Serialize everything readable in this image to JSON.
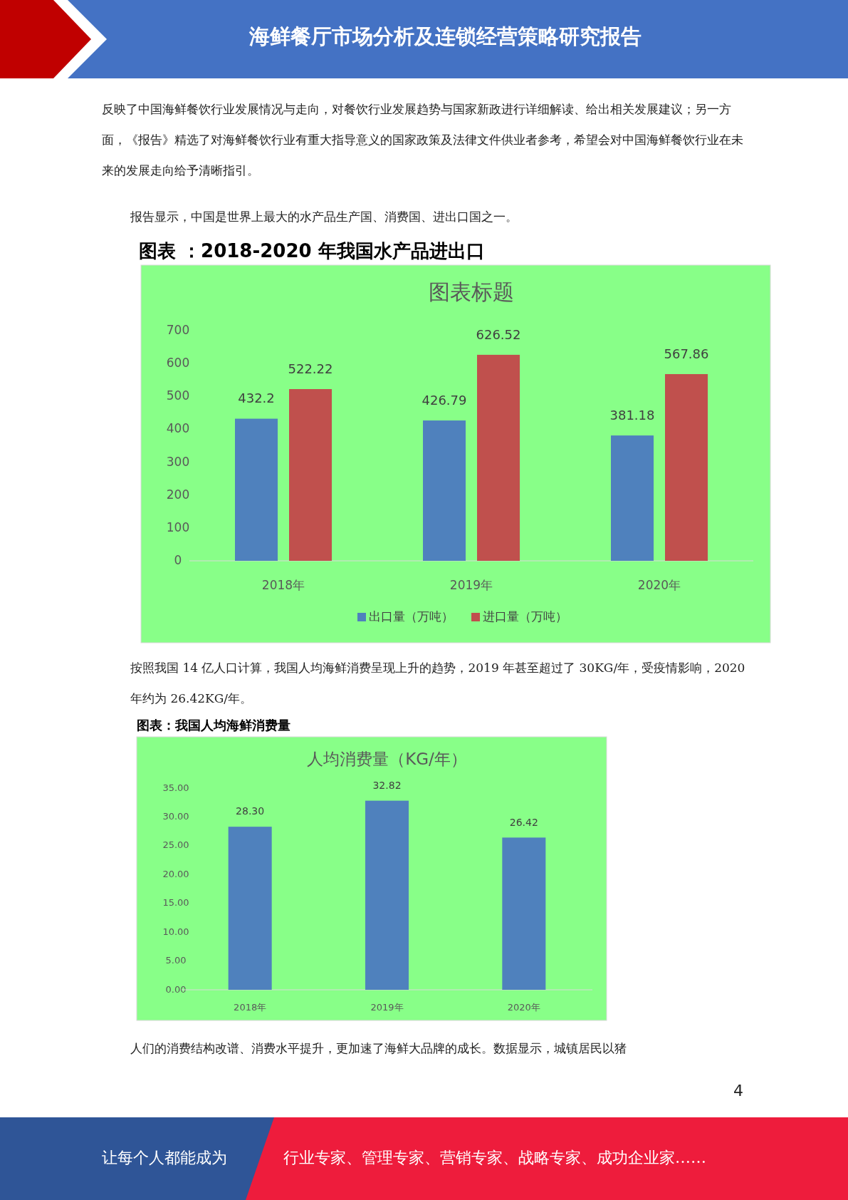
{
  "chart_data": [
    {
      "type": "bar",
      "title": "图表 ：2018-2020 年我国水产品进出口",
      "subtitle": "图表标题",
      "categories": [
        "2018年",
        "2019年",
        "2020年"
      ],
      "series": [
        {
          "name": "出口量（万吨）",
          "color": "#4f81bd",
          "values": [
            432.2,
            426.79,
            381.18
          ],
          "value_labels": [
            "432.2",
            "426.79",
            "381.18"
          ]
        },
        {
          "name": "进口量（万吨）",
          "color": "#c0504d",
          "values": [
            522.22,
            626.52,
            567.86
          ],
          "value_labels": [
            "522.22",
            "626.52",
            "567.86"
          ]
        }
      ],
      "ylim": [
        0,
        700
      ],
      "yticks": [
        0,
        100,
        200,
        300,
        400,
        500,
        600,
        700
      ],
      "legend": "bottom",
      "annotations": [
        "海鲜餐厅市场分析及连锁经营策略研究报告",
        "反映了中国海鲜餐饮行业发展情况与走向，对餐饮行业发展趋势与国家新政进行详细解读、给出相关发展建议；另一方面，《报告》精选了对海鲜餐饮行业有重大指导意义的国家政策及法律文件供业者参考，希望会对中国海鲜餐饮行业在未来的发展走向给予清晰指引。",
        "报告显示，中国是世界上最大的水产品生产国、消费国、进出口国之一。"
      ]
    },
    {
      "type": "bar",
      "title": "图表：我国人均海鲜消费量",
      "subtitle": "人均消费量（KG/年）",
      "categories": [
        "2018年",
        "2019年",
        "2020年"
      ],
      "series": [
        {
          "color": "#4f81bd",
          "values": [
            28.3,
            32.82,
            26.42
          ],
          "value_labels": [
            "28.30",
            "32.82",
            "26.42"
          ]
        }
      ],
      "ylim": [
        0,
        35
      ],
      "yticks": [
        {
          "value": 0,
          "label": "0.00"
        },
        {
          "value": 5,
          "label": "5.00"
        },
        {
          "value": 10,
          "label": "10.00"
        },
        {
          "value": 15,
          "label": "15.00"
        },
        {
          "value": 20,
          "label": "20.00"
        },
        {
          "value": 25,
          "label": "25.00"
        },
        {
          "value": 30,
          "label": "30.00"
        },
        {
          "value": 35,
          "label": "35.00"
        }
      ],
      "annotations": [
        "按照我国 14 亿人口计算，我国人均海鲜消费呈现上升的趋势，2019 年甚至超过了 30KG/年，受疫情影响，2020 年约为 26.42KG/年。",
        "人们的消费结构改谱、消费水平提升，更加速了海鲜大品牌的成长。数据显示，城镇居民以猪",
        "4",
        "让每个人都能成为",
        "行业专家、管理专家、营销专家、战略专家、成功企业家……"
      ]
    }
  ]
}
